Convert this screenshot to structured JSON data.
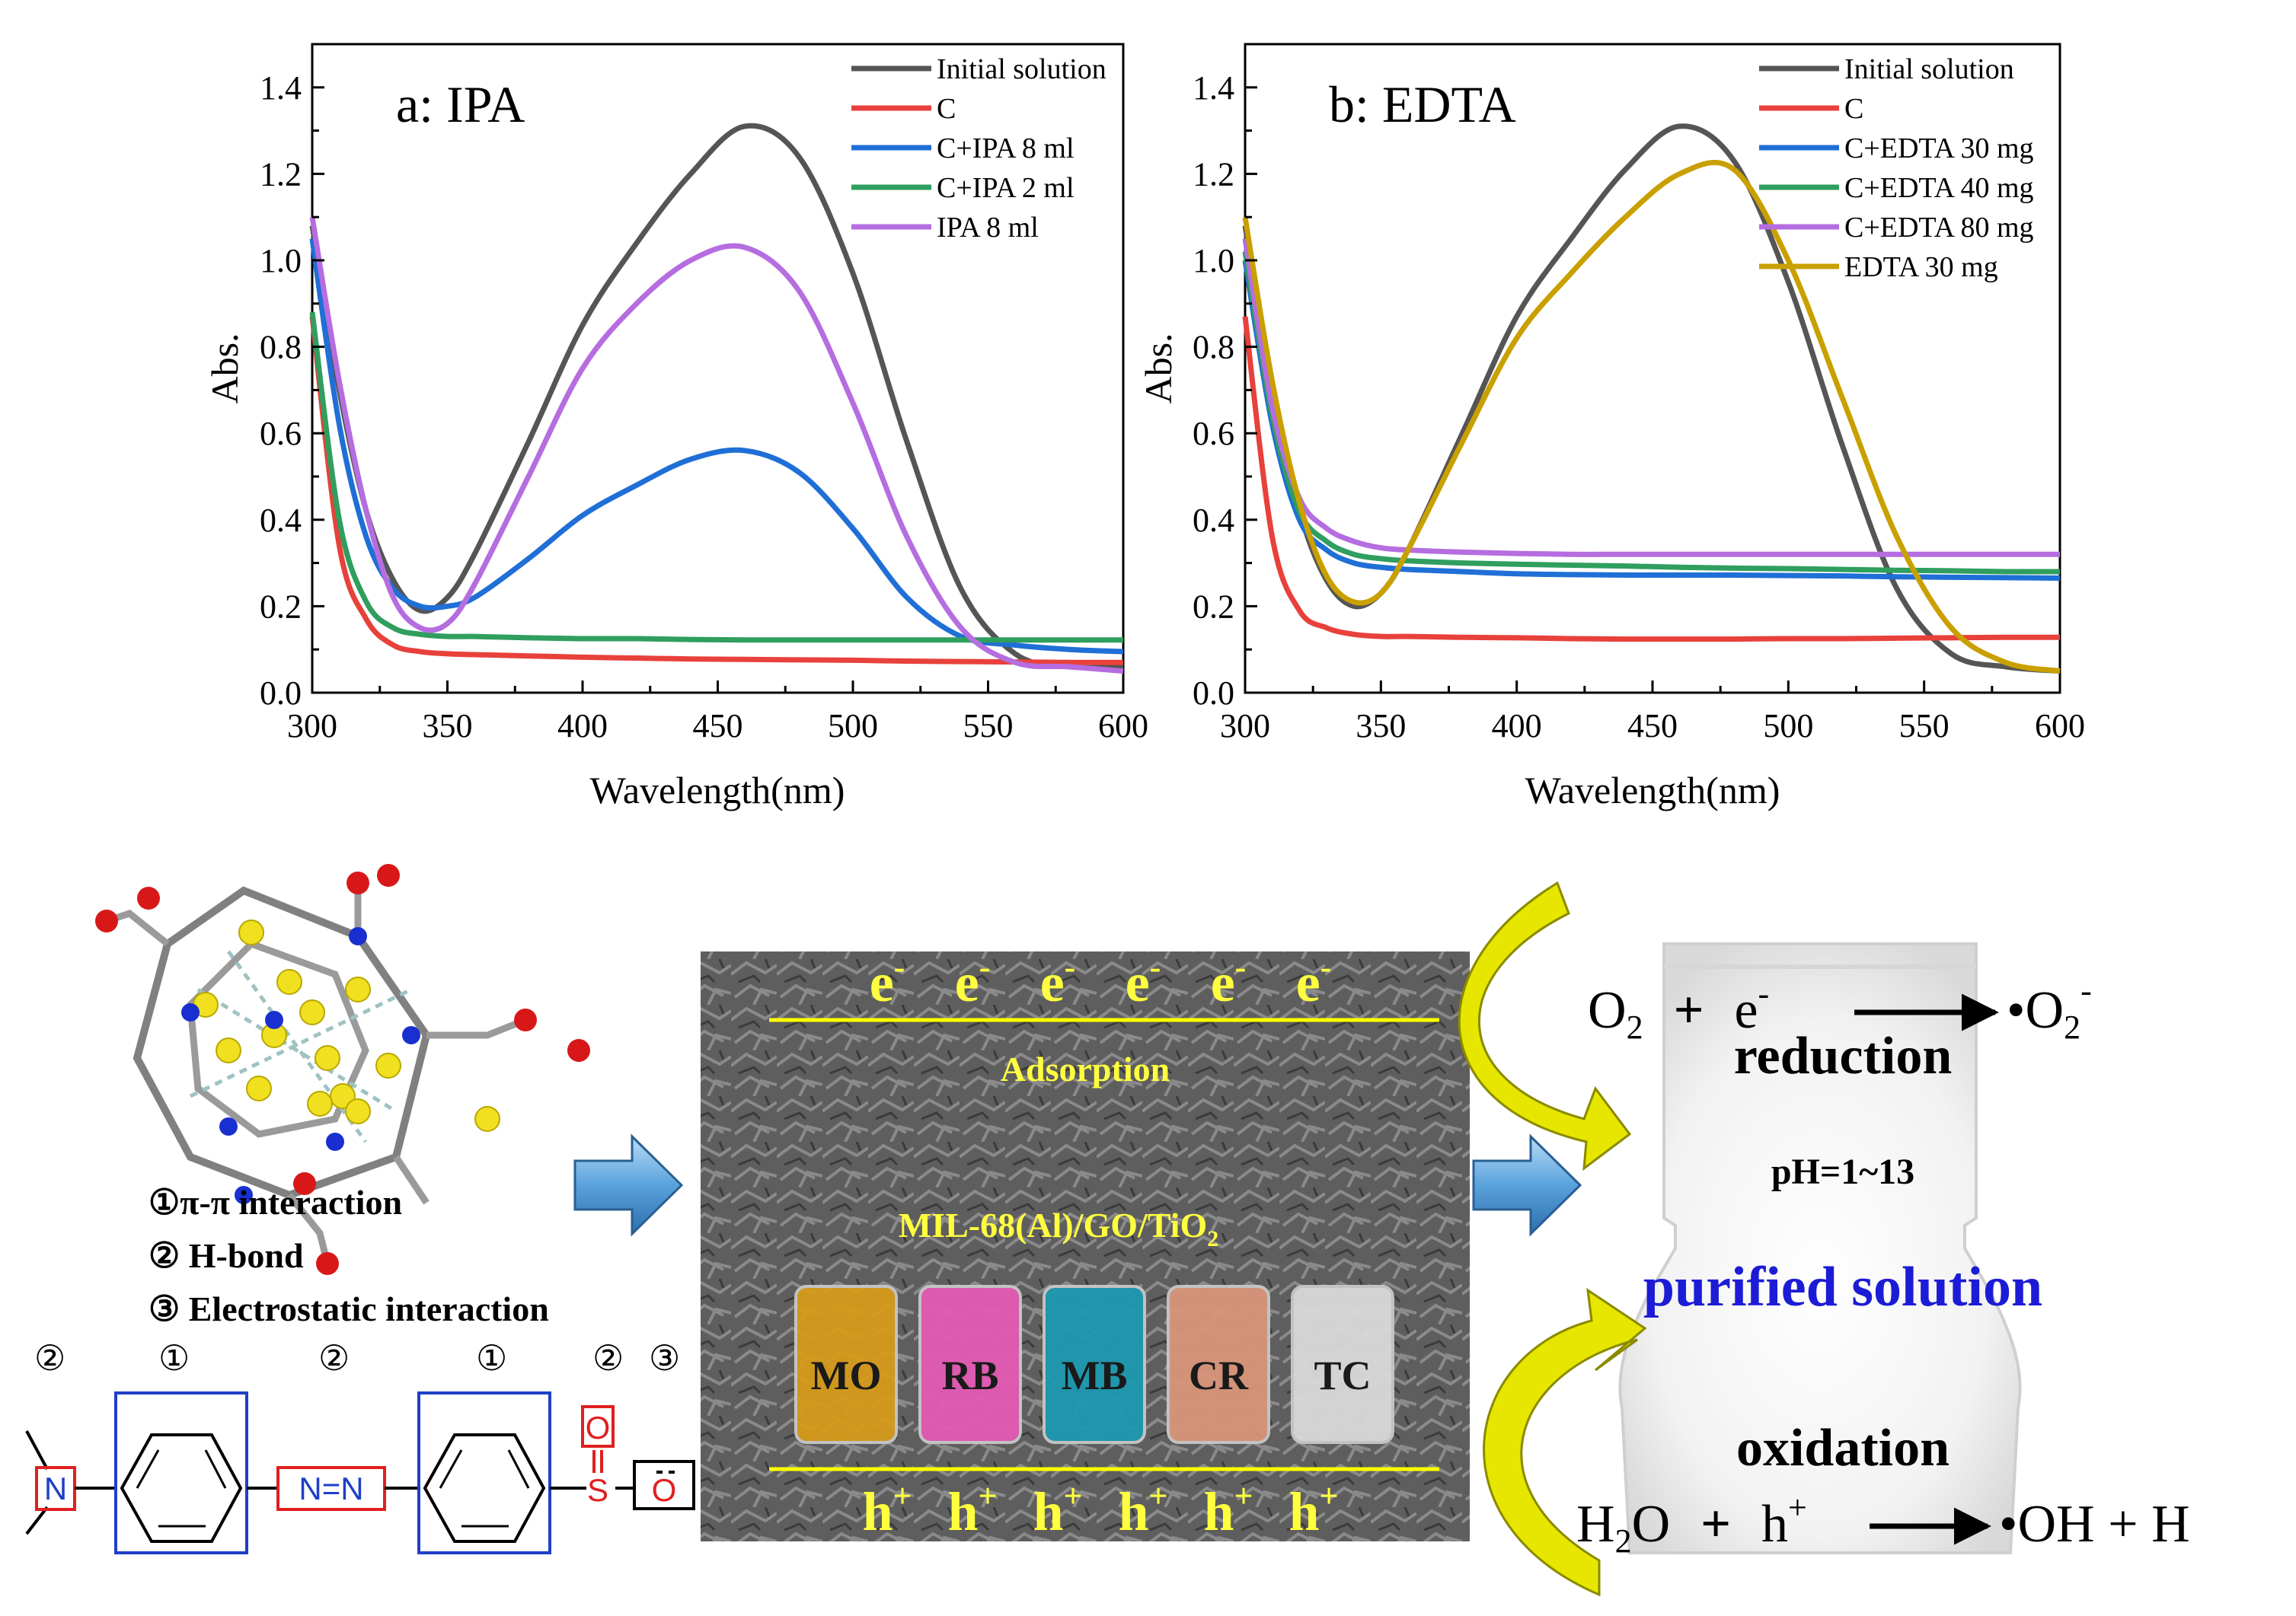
{
  "chart_data": [
    {
      "type": "line",
      "title": "a: IPA",
      "xlabel": "Wavelength(nm)",
      "ylabel": "Abs.",
      "xlim": [
        300,
        600
      ],
      "ylim": [
        0.0,
        1.5
      ],
      "xticks": [
        "300",
        "350",
        "400",
        "450",
        "500",
        "550",
        "600"
      ],
      "yticks": [
        "0.0",
        "0.2",
        "0.4",
        "0.6",
        "0.8",
        "1.0",
        "1.2",
        "1.4"
      ],
      "legend_position": "top-right",
      "x": [
        300,
        310,
        320,
        330,
        340,
        350,
        360,
        380,
        400,
        420,
        440,
        460,
        480,
        500,
        520,
        540,
        560,
        580,
        600
      ],
      "series": [
        {
          "name": "Initial solution",
          "color": "#555555",
          "values": [
            1.08,
            0.7,
            0.42,
            0.26,
            0.19,
            0.22,
            0.32,
            0.58,
            0.85,
            1.04,
            1.2,
            1.31,
            1.24,
            0.97,
            0.58,
            0.24,
            0.09,
            0.06,
            0.06
          ]
        },
        {
          "name": "C",
          "color": "#e8413b",
          "values": [
            0.87,
            0.34,
            0.17,
            0.11,
            0.095,
            0.09,
            0.088,
            0.085,
            0.082,
            0.08,
            0.078,
            0.077,
            0.076,
            0.075,
            0.073,
            0.072,
            0.071,
            0.07,
            0.07
          ]
        },
        {
          "name": "C+IPA 8 ml",
          "color": "#1f6fd6",
          "values": [
            1.05,
            0.62,
            0.36,
            0.24,
            0.2,
            0.2,
            0.22,
            0.31,
            0.41,
            0.48,
            0.54,
            0.56,
            0.51,
            0.38,
            0.22,
            0.13,
            0.11,
            0.1,
            0.095
          ]
        },
        {
          "name": "C+IPA 2 ml",
          "color": "#2f9e5e",
          "values": [
            0.88,
            0.4,
            0.21,
            0.15,
            0.135,
            0.13,
            0.13,
            0.127,
            0.125,
            0.125,
            0.123,
            0.122,
            0.122,
            0.122,
            0.122,
            0.122,
            0.122,
            0.122,
            0.122
          ]
        },
        {
          "name": "IPA 8 ml",
          "color": "#b56de0",
          "values": [
            1.1,
            0.72,
            0.42,
            0.22,
            0.15,
            0.16,
            0.25,
            0.5,
            0.75,
            0.9,
            1.0,
            1.03,
            0.93,
            0.67,
            0.36,
            0.15,
            0.07,
            0.06,
            0.05
          ]
        }
      ]
    },
    {
      "type": "line",
      "title": "b: EDTA",
      "xlabel": "Wavelength(nm)",
      "ylabel": "Abs.",
      "xlim": [
        300,
        600
      ],
      "ylim": [
        0.0,
        1.5
      ],
      "xticks": [
        "300",
        "350",
        "400",
        "450",
        "500",
        "550",
        "600"
      ],
      "yticks": [
        "0.0",
        "0.2",
        "0.4",
        "0.6",
        "0.8",
        "1.0",
        "1.2",
        "1.4"
      ],
      "legend_position": "top-right",
      "x": [
        300,
        310,
        320,
        330,
        340,
        350,
        360,
        380,
        400,
        420,
        440,
        460,
        480,
        500,
        520,
        540,
        560,
        580,
        600
      ],
      "series": [
        {
          "name": "Initial solution",
          "color": "#555555",
          "values": [
            1.08,
            0.7,
            0.42,
            0.26,
            0.2,
            0.23,
            0.33,
            0.6,
            0.87,
            1.05,
            1.21,
            1.31,
            1.23,
            0.95,
            0.57,
            0.24,
            0.09,
            0.06,
            0.05
          ]
        },
        {
          "name": "C",
          "color": "#e8413b",
          "values": [
            0.87,
            0.36,
            0.19,
            0.15,
            0.135,
            0.13,
            0.13,
            0.128,
            0.127,
            0.125,
            0.124,
            0.124,
            0.124,
            0.125,
            0.125,
            0.126,
            0.127,
            0.128,
            0.128
          ]
        },
        {
          "name": "C+EDTA 30 mg",
          "color": "#1f6fd6",
          "values": [
            1.0,
            0.62,
            0.4,
            0.33,
            0.3,
            0.29,
            0.285,
            0.28,
            0.275,
            0.273,
            0.272,
            0.272,
            0.272,
            0.271,
            0.27,
            0.268,
            0.267,
            0.266,
            0.265
          ]
        },
        {
          "name": "C+EDTA 40 mg",
          "color": "#2f9e5e",
          "values": [
            1.02,
            0.64,
            0.42,
            0.35,
            0.32,
            0.31,
            0.305,
            0.3,
            0.297,
            0.295,
            0.293,
            0.29,
            0.288,
            0.287,
            0.285,
            0.283,
            0.282,
            0.28,
            0.28
          ]
        },
        {
          "name": "C+EDTA 80 mg",
          "color": "#b56de0",
          "values": [
            1.05,
            0.66,
            0.45,
            0.38,
            0.35,
            0.335,
            0.33,
            0.325,
            0.322,
            0.32,
            0.32,
            0.32,
            0.32,
            0.32,
            0.32,
            0.32,
            0.32,
            0.32,
            0.32
          ]
        },
        {
          "name": "EDTA 30 mg",
          "color": "#c9a000",
          "values": [
            1.1,
            0.72,
            0.44,
            0.27,
            0.21,
            0.23,
            0.33,
            0.58,
            0.82,
            0.97,
            1.1,
            1.2,
            1.21,
            1.0,
            0.68,
            0.36,
            0.15,
            0.07,
            0.05
          ]
        }
      ]
    }
  ],
  "mechanism": {
    "interactions": [
      "①π-π interaction",
      "② H-bond",
      "③ Electrostatic interaction"
    ],
    "site_markers": [
      "②",
      "①",
      "②",
      "①",
      "②",
      "③"
    ],
    "atoms": {
      "n1": "N",
      "azo": "N=N",
      "o_top": "O",
      "s": "S",
      "o_minus": "O"
    },
    "electrons": [
      "e",
      "e",
      "e",
      "e",
      "e",
      "e"
    ],
    "electron_sup": "-",
    "holes": [
      "h",
      "h",
      "h",
      "h",
      "h",
      "h"
    ],
    "hole_sup": "+",
    "adsorption": "Adsorption",
    "catalyst": "MIL-68(Al)/GO/TiO",
    "catalyst_sub": "2",
    "dyes": [
      {
        "label": "MO",
        "color": "#d69b1a"
      },
      {
        "label": "RB",
        "color": "#e35ab5"
      },
      {
        "label": "MB",
        "color": "#1d98b0"
      },
      {
        "label": "CR",
        "color": "#d8957a"
      },
      {
        "label": "TC",
        "color": "#dadada"
      }
    ],
    "reduction_eq": {
      "o2": "O",
      "o2_sub": "2",
      "plus": "+",
      "e": "e",
      "e_sup": "-",
      "product": "•O",
      "product_sub": "2",
      "product_sup": "-"
    },
    "reduction": "reduction",
    "ph": "pH=1~13",
    "purified": "purified solution",
    "oxidation": "oxidation",
    "oxidation_eq": {
      "h2o": "H",
      "h2o_sub": "2",
      "h2o_tail": "O",
      "plus": "+",
      "h": "h",
      "h_sup": "+",
      "product": "•OH + H"
    }
  }
}
